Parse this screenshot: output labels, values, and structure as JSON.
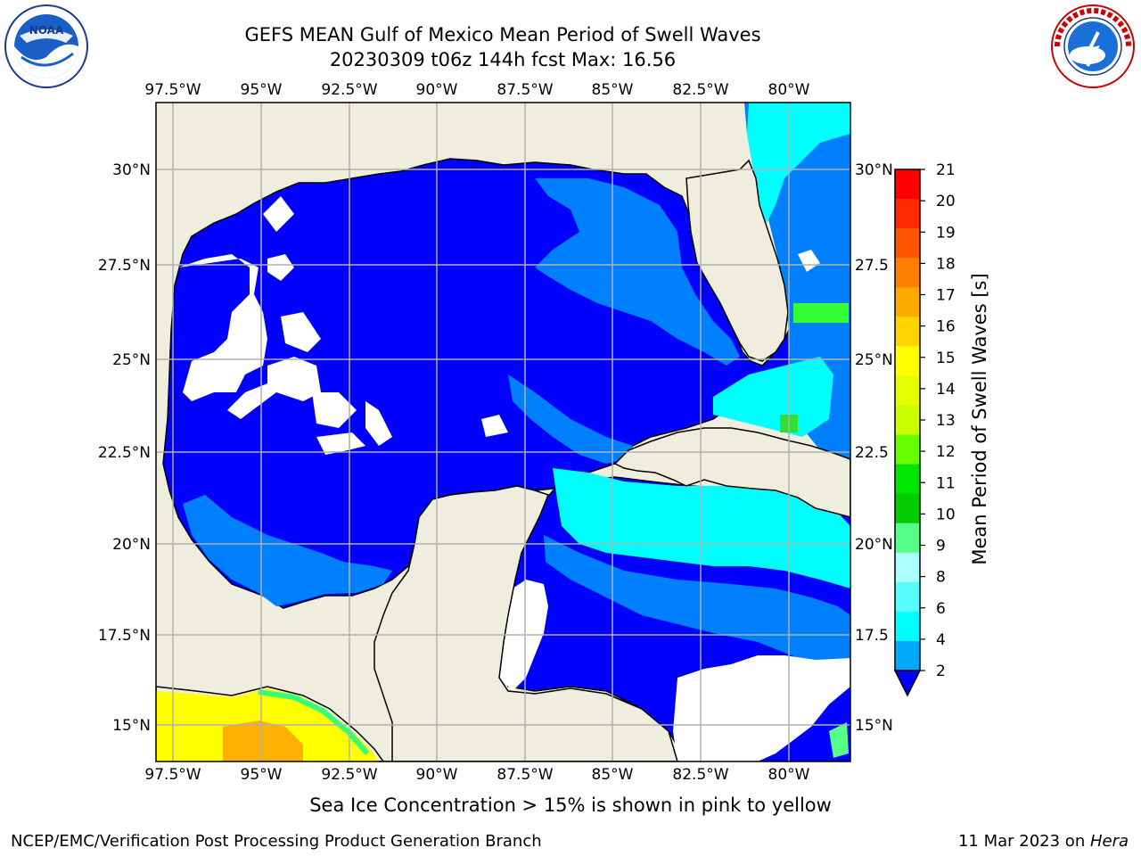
{
  "header": {
    "title_line1": "GEFS MEAN Gulf of Mexico Mean Period of Swell Waves",
    "title_line2": "20230309 t06z 144h fcst   Max: 16.56"
  },
  "map": {
    "lon_labels": [
      "97.5°W",
      "95°W",
      "92.5°W",
      "90°W",
      "87.5°W",
      "85°W",
      "82.5°W",
      "80°W"
    ],
    "lat_labels_left": [
      "30°N",
      "27.5°N",
      "25°N",
      "22.5°N",
      "20°N",
      "17.5°N",
      "15°N"
    ],
    "lat_labels_right": [
      "30°N",
      "27.5",
      "25°N",
      "22.5",
      "20°N",
      "17.5",
      "15°N"
    ],
    "colors": {
      "land": "#efedde",
      "ocean_low": "#0000ff",
      "ocean_mid": "#0080ff",
      "ocean_high": "#00ffff",
      "grid": "#b0b0b0",
      "no_data": "#ffffff"
    }
  },
  "colorbar": {
    "label": "Mean Period of Swell Waves [s]",
    "ticks": [
      "21",
      "20",
      "19",
      "18",
      "17",
      "16",
      "15",
      "14",
      "13",
      "12",
      "11",
      "10",
      "9",
      "8",
      "6",
      "4",
      "2"
    ],
    "colors": [
      "#ff0000",
      "#ff2a00",
      "#ff5500",
      "#ff8000",
      "#ffaa00",
      "#ffd400",
      "#ffff00",
      "#e6ff00",
      "#ccff00",
      "#66ff00",
      "#00e600",
      "#00cc00",
      "#55ff88",
      "#aaffff",
      "#55ffff",
      "#00ffff",
      "#00aaff",
      "#0000ff"
    ]
  },
  "footer": {
    "caption": "Sea Ice Concentration > 15% is shown in pink to yellow",
    "credit": "NCEP/EMC/Verification Post Processing Product Generation Branch",
    "date_prefix": "11 Mar 2023 on ",
    "date_machine": "Hera"
  },
  "logos": {
    "left": "noaa-logo",
    "right": "nws-logo"
  }
}
